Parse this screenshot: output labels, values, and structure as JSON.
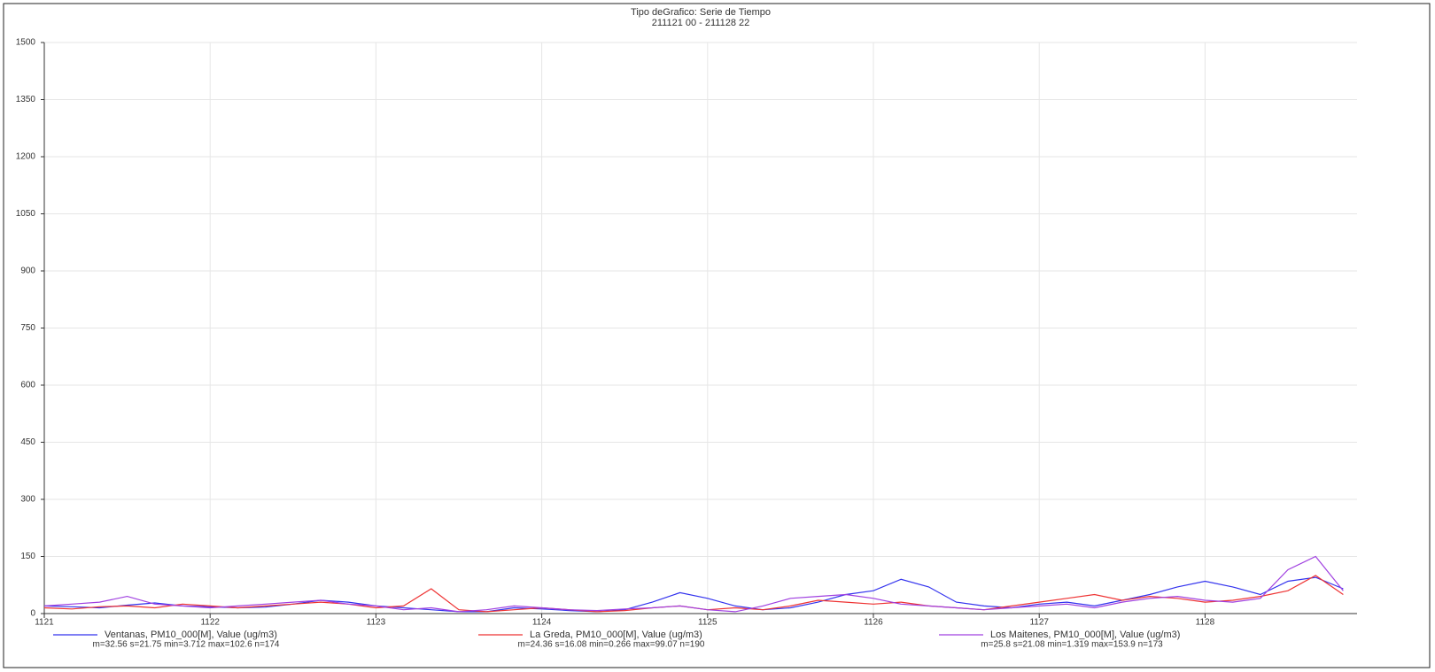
{
  "chart_data": {
    "type": "line",
    "title": "Tipo deGrafico: Serie de Tiempo",
    "subtitle": "211121 00 - 211128 22",
    "x": [
      0,
      4,
      8,
      12,
      16,
      20,
      24,
      28,
      32,
      36,
      40,
      44,
      48,
      52,
      56,
      60,
      64,
      68,
      72,
      76,
      80,
      84,
      88,
      92,
      96,
      100,
      104,
      108,
      112,
      116,
      120,
      124,
      128,
      132,
      136,
      140,
      144,
      148,
      152,
      156,
      160,
      164,
      168,
      172,
      176,
      180,
      184,
      188
    ],
    "xlim": [
      0,
      190
    ],
    "xticks": [
      {
        "value": 0,
        "label": "1121"
      },
      {
        "value": 24,
        "label": "1122"
      },
      {
        "value": 48,
        "label": "1123"
      },
      {
        "value": 72,
        "label": "1124"
      },
      {
        "value": 96,
        "label": "1125"
      },
      {
        "value": 120,
        "label": "1126"
      },
      {
        "value": 144,
        "label": "1127"
      },
      {
        "value": 168,
        "label": "1128"
      }
    ],
    "ylim": [
      0,
      1500
    ],
    "yticks": [
      0,
      150,
      300,
      450,
      600,
      750,
      900,
      1050,
      1200,
      1350,
      1500
    ],
    "grid": true,
    "legend": "bottom",
    "series": [
      {
        "name": "Ventanas, PM10_000[M], Value (ug/m3)",
        "stats": "m=32.56 s=21.75 min=3.712 max=102.6 n=174",
        "color": "#3333ee",
        "values": [
          20,
          18,
          15,
          22,
          28,
          20,
          18,
          15,
          17,
          25,
          35,
          30,
          20,
          15,
          10,
          5,
          5,
          15,
          12,
          8,
          5,
          10,
          30,
          55,
          40,
          20,
          10,
          15,
          30,
          50,
          60,
          90,
          70,
          30,
          20,
          15,
          25,
          30,
          20,
          35,
          50,
          70,
          85,
          70,
          50,
          85,
          95,
          65
        ]
      },
      {
        "name": "La Greda, PM10_000[M], Value (ug/m3)",
        "stats": "m=24.36 s=16.08 min=0.266 max=99.07 n=190",
        "color": "#ee3333",
        "values": [
          15,
          12,
          18,
          20,
          15,
          25,
          20,
          15,
          20,
          25,
          30,
          25,
          15,
          20,
          65,
          10,
          5,
          10,
          15,
          10,
          5,
          8,
          15,
          20,
          10,
          15,
          10,
          20,
          35,
          30,
          25,
          30,
          20,
          15,
          10,
          20,
          30,
          40,
          50,
          35,
          45,
          40,
          30,
          35,
          45,
          60,
          100,
          50
        ]
      },
      {
        "name": "Los Maitenes, PM10_000[M], Value (ug/m3)",
        "stats": "m=25.8 s=21.08 min=1.319 max=153.9 n=173",
        "color": "#a040e0",
        "values": [
          20,
          25,
          30,
          45,
          25,
          20,
          15,
          20,
          25,
          30,
          35,
          25,
          20,
          10,
          15,
          5,
          10,
          20,
          15,
          10,
          8,
          12,
          15,
          20,
          10,
          5,
          20,
          40,
          45,
          50,
          40,
          25,
          20,
          15,
          10,
          15,
          20,
          25,
          15,
          30,
          40,
          45,
          35,
          30,
          40,
          115,
          150,
          60
        ]
      }
    ]
  }
}
